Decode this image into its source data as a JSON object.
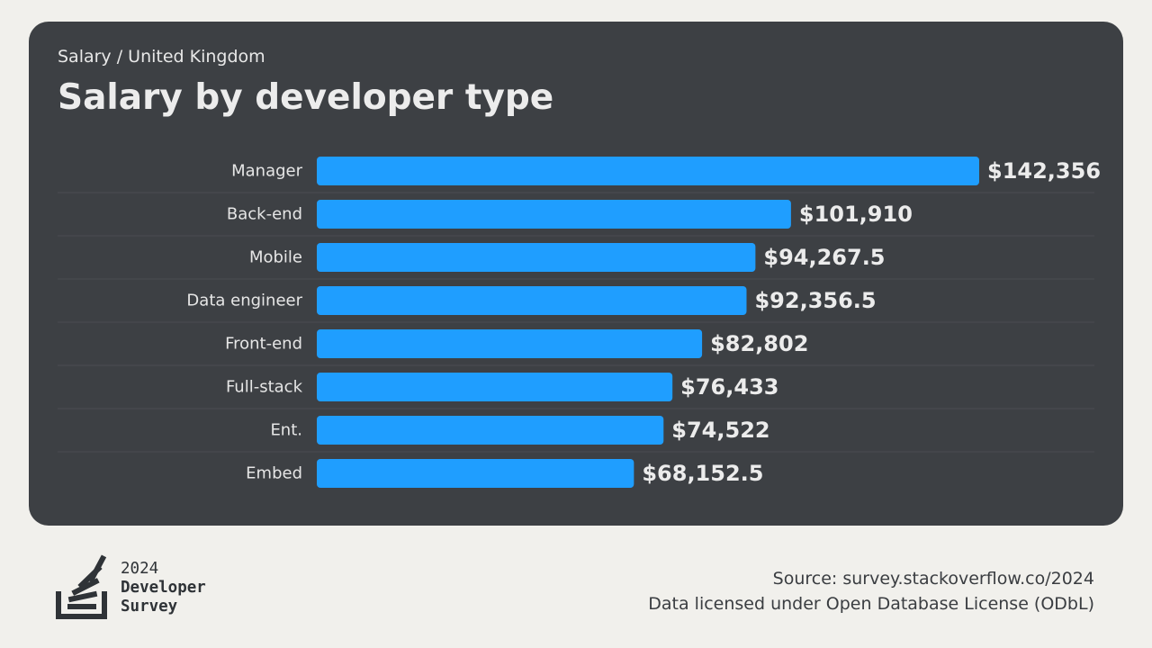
{
  "header": {
    "breadcrumb": "Salary / United Kingdom",
    "title": "Salary by developer type"
  },
  "chart_data": {
    "type": "bar",
    "orientation": "horizontal",
    "categories": [
      "Manager",
      "Back-end",
      "Mobile",
      "Data engineer",
      "Front-end",
      "Full-stack",
      "Ent.",
      "Embed"
    ],
    "values": [
      142356,
      101910,
      94267.5,
      92356.5,
      82802,
      76433,
      74522,
      68152.5
    ],
    "value_labels": [
      "$142,356",
      "$101,910",
      "$94,267.5",
      "$92,356.5",
      "$82,802",
      "$76,433",
      "$74,522",
      "$68,152.5"
    ],
    "xlim": [
      0,
      142356
    ],
    "grid": false,
    "bar_color": "#1f9eff"
  },
  "footer": {
    "brand_year": "2024",
    "brand_line1": "Developer",
    "brand_line2": "Survey",
    "source": "Source: survey.stackoverflow.co/2024",
    "license": "Data licensed under Open Database License (ODbL)"
  },
  "colors": {
    "card_bg": "#3d4044",
    "page_bg": "#f1f0ec",
    "bar": "#1f9eff",
    "divider": "#4a4d52"
  },
  "icons": [
    "stack-overflow-logo-icon"
  ]
}
